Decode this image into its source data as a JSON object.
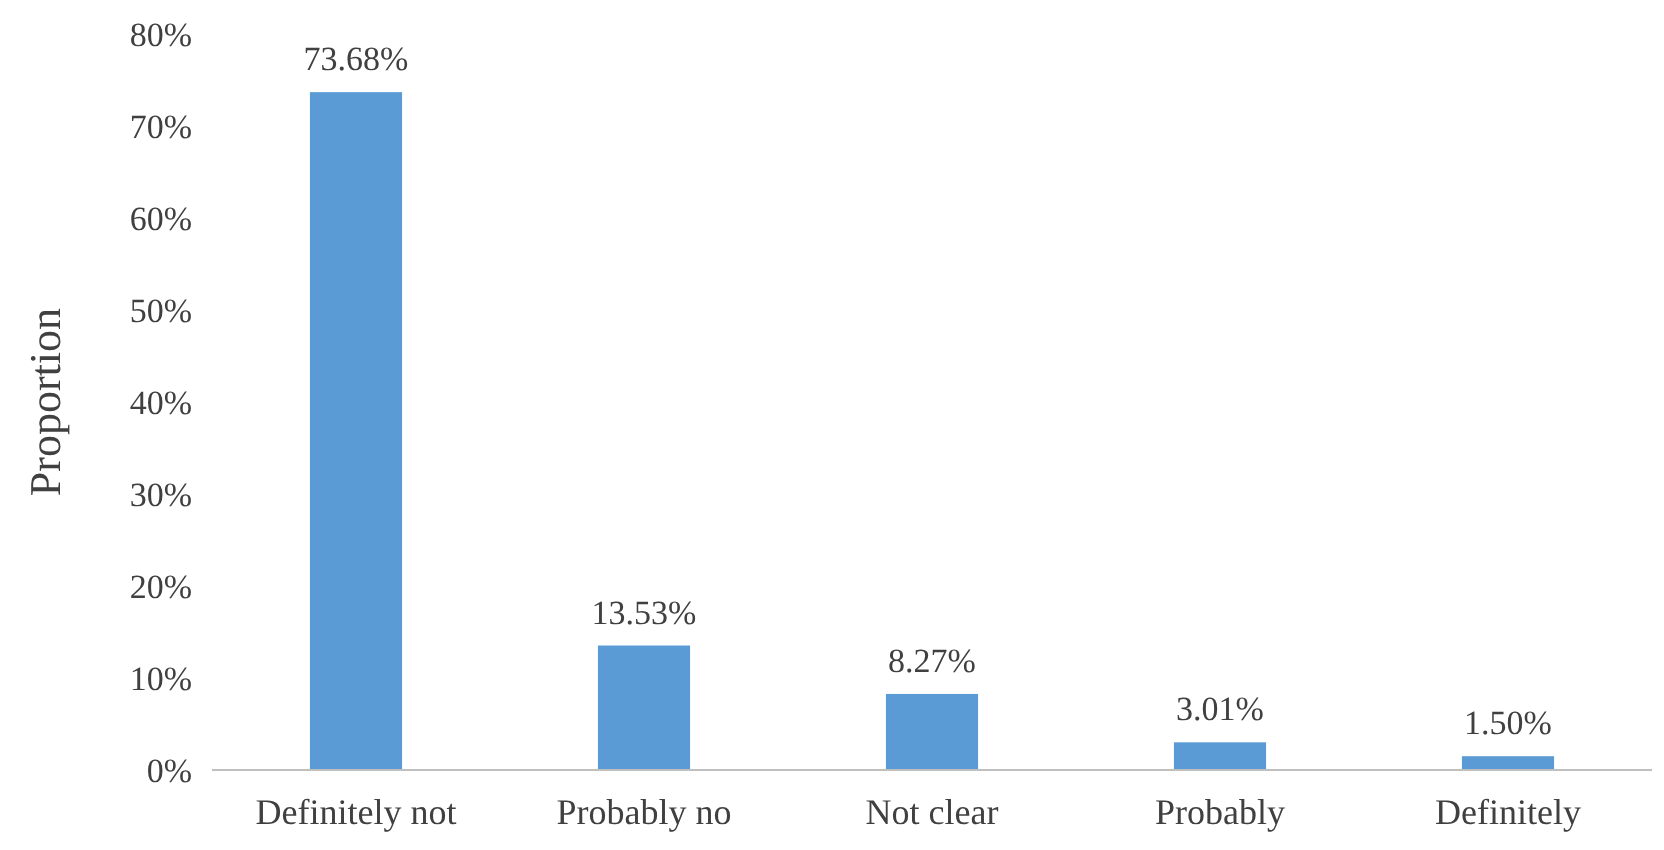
{
  "chart_data": {
    "type": "bar",
    "ylabel": "Proportion",
    "categories": [
      "Definitely not",
      "Probably no",
      "Not clear",
      "Probably",
      "Definitely"
    ],
    "values": [
      73.68,
      13.53,
      8.27,
      3.01,
      1.5
    ],
    "value_labels": [
      "73.68%",
      "13.53%",
      "8.27%",
      "3.01%",
      "1.50%"
    ],
    "color": "#5b9bd5",
    "ylim": [
      0,
      80
    ],
    "yticks": [
      {
        "value": 0,
        "label": "0%"
      },
      {
        "value": 10,
        "label": "10%"
      },
      {
        "value": 20,
        "label": "20%"
      },
      {
        "value": 30,
        "label": "30%"
      },
      {
        "value": 40,
        "label": "40%"
      },
      {
        "value": 50,
        "label": "50%"
      },
      {
        "value": 60,
        "label": "60%"
      },
      {
        "value": 70,
        "label": "70%"
      },
      {
        "value": 80,
        "label": "80%"
      }
    ],
    "grid": false
  }
}
